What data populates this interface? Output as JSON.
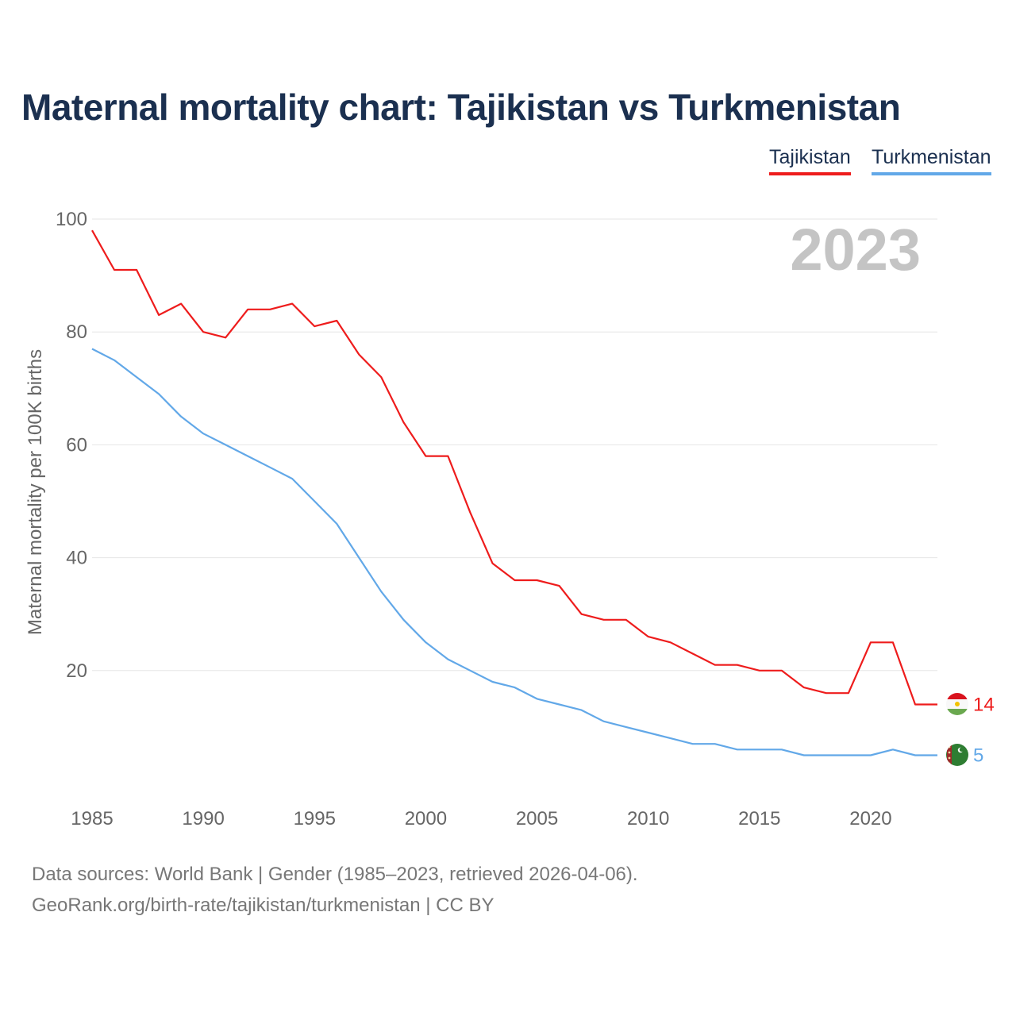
{
  "chart_data": {
    "type": "line",
    "title": "Maternal mortality chart: Tajikistan vs Turkmenistan",
    "xlabel": "",
    "ylabel": "Maternal mortality per 100K births",
    "xlim": [
      1985,
      2023
    ],
    "ylim": [
      0,
      100
    ],
    "x_ticks": [
      1985,
      1990,
      1995,
      2000,
      2005,
      2010,
      2015,
      2020
    ],
    "y_ticks": [
      20,
      40,
      60,
      80,
      100
    ],
    "grid": true,
    "legend": "top-right",
    "year_watermark": "2023",
    "x": [
      1985,
      1986,
      1987,
      1988,
      1989,
      1990,
      1991,
      1992,
      1993,
      1994,
      1995,
      1996,
      1997,
      1998,
      1999,
      2000,
      2001,
      2002,
      2003,
      2004,
      2005,
      2006,
      2007,
      2008,
      2009,
      2010,
      2011,
      2012,
      2013,
      2014,
      2015,
      2016,
      2017,
      2018,
      2019,
      2020,
      2021,
      2022,
      2023
    ],
    "series": [
      {
        "name": "Tajikistan",
        "color": "#ee1c1c",
        "end_label": "14",
        "flag": "tajikistan-flag",
        "values": [
          98,
          91,
          91,
          83,
          85,
          80,
          79,
          84,
          84,
          85,
          81,
          82,
          76,
          72,
          64,
          58,
          58,
          48,
          39,
          36,
          36,
          35,
          30,
          29,
          29,
          26,
          25,
          23,
          21,
          21,
          20,
          20,
          17,
          16,
          16,
          25,
          25,
          14,
          14
        ]
      },
      {
        "name": "Turkmenistan",
        "color": "#62a8e8",
        "end_label": "5",
        "flag": "turkmenistan-flag",
        "values": [
          77,
          75,
          72,
          69,
          65,
          62,
          60,
          58,
          56,
          54,
          50,
          46,
          40,
          34,
          29,
          25,
          22,
          20,
          18,
          17,
          15,
          14,
          13,
          11,
          10,
          9,
          8,
          7,
          7,
          6,
          6,
          6,
          5,
          5,
          5,
          5,
          6,
          5,
          5
        ]
      }
    ]
  },
  "footer": {
    "source_line": "Data sources: World Bank | Gender (1985–2023, retrieved 2026-04-06).",
    "credit_line": "GeoRank.org/birth-rate/tajikistan/turkmenistan | CC BY"
  }
}
